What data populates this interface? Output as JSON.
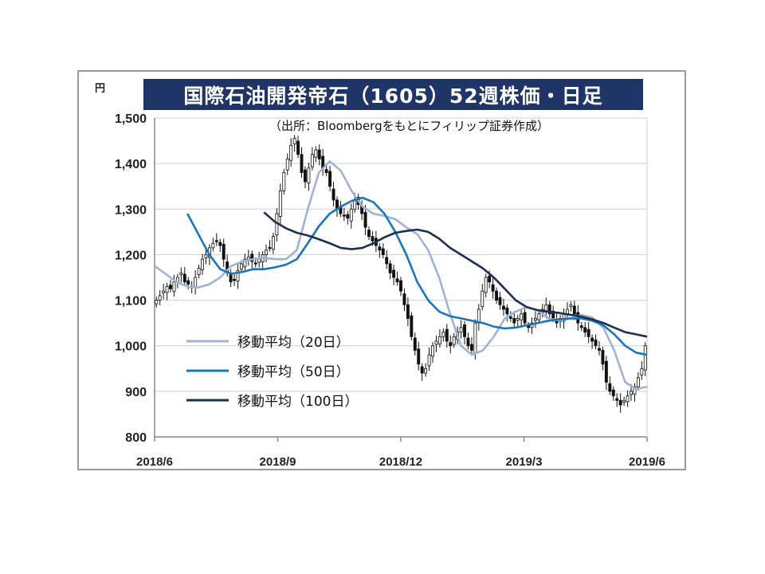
{
  "chart_data": {
    "type": "line",
    "title": "国際石油開発帝石（1605）52週株価・日足",
    "source": "（出所：Bloombergをもとにフィリップ証券作成）",
    "ylabel": "円",
    "ylim": [
      800,
      1500
    ],
    "yticks": [
      "800",
      "900",
      "1,000",
      "1,100",
      "1,200",
      "1,300",
      "1,400",
      "1,500"
    ],
    "xticks": [
      "2018/6",
      "2018/9",
      "2018/12",
      "2019/3",
      "2019/6"
    ],
    "xtick_positions": [
      0,
      0.25,
      0.5,
      0.75,
      1.0
    ],
    "legend_position": "left-middle",
    "candles_close": [
      1100,
      1110,
      1120,
      1130,
      1125,
      1140,
      1150,
      1160,
      1140,
      1135,
      1130,
      1150,
      1170,
      1190,
      1200,
      1215,
      1225,
      1230,
      1220,
      1190,
      1160,
      1140,
      1145,
      1165,
      1180,
      1190,
      1195,
      1185,
      1180,
      1190,
      1200,
      1210,
      1215,
      1240,
      1290,
      1340,
      1380,
      1410,
      1440,
      1455,
      1420,
      1380,
      1360,
      1390,
      1420,
      1430,
      1410,
      1390,
      1380,
      1350,
      1320,
      1300,
      1290,
      1285,
      1280,
      1300,
      1320,
      1310,
      1290,
      1260,
      1240,
      1230,
      1220,
      1210,
      1200,
      1180,
      1160,
      1150,
      1140,
      1120,
      1090,
      1060,
      1020,
      990,
      960,
      940,
      950,
      980,
      1000,
      1010,
      1020,
      1030,
      1010,
      1000,
      1020,
      1030,
      1040,
      1020,
      1000,
      990,
      1050,
      1080,
      1120,
      1150,
      1140,
      1120,
      1100,
      1090,
      1080,
      1070,
      1060,
      1050,
      1060,
      1070,
      1050,
      1040,
      1050,
      1060,
      1070,
      1080,
      1090,
      1070,
      1060,
      1050,
      1060,
      1070,
      1080,
      1090,
      1070,
      1050,
      1040,
      1030,
      1020,
      1010,
      1000,
      990,
      960,
      920,
      900,
      890,
      880,
      870,
      880,
      890,
      900,
      910,
      930,
      950,
      1000
    ],
    "series": [
      {
        "name": "移動平均（20日）",
        "color": "#9fb3d6",
        "values": [
          1175,
          1158,
          1140,
          1130,
          1128,
          1135,
          1150,
          1175,
          1185,
          1190,
          1193,
          1190,
          1190,
          1210,
          1300,
          1380,
          1405,
          1385,
          1340,
          1305,
          1290,
          1285,
          1278,
          1260,
          1245,
          1210,
          1150,
          1070,
          1000,
          980,
          990,
          1020,
          1060,
          1075,
          1085,
          1078,
          1060,
          1055,
          1060,
          1068,
          1062,
          1040,
          990,
          920,
          905,
          910
        ]
      },
      {
        "name": "移動平均（50日）",
        "color": "#1b75bb",
        "values": [
          1290,
          1245,
          1200,
          1168,
          1158,
          1162,
          1168,
          1168,
          1172,
          1178,
          1190,
          1225,
          1262,
          1290,
          1305,
          1318,
          1325,
          1315,
          1290,
          1250,
          1200,
          1140,
          1100,
          1075,
          1065,
          1060,
          1055,
          1050,
          1042,
          1038,
          1040,
          1045,
          1050,
          1055,
          1058,
          1060,
          1060,
          1055,
          1045,
          1025,
          1000,
          985,
          980
        ]
      },
      {
        "name": "移動平均（100日）",
        "color": "#1a2f52",
        "values": [
          1293,
          1272,
          1258,
          1248,
          1242,
          1234,
          1225,
          1215,
          1212,
          1215,
          1225,
          1238,
          1248,
          1252,
          1255,
          1250,
          1235,
          1215,
          1200,
          1185,
          1170,
          1150,
          1125,
          1100,
          1085,
          1078,
          1075,
          1072,
          1068,
          1064,
          1058,
          1050,
          1040,
          1030,
          1025,
          1020
        ]
      }
    ]
  }
}
